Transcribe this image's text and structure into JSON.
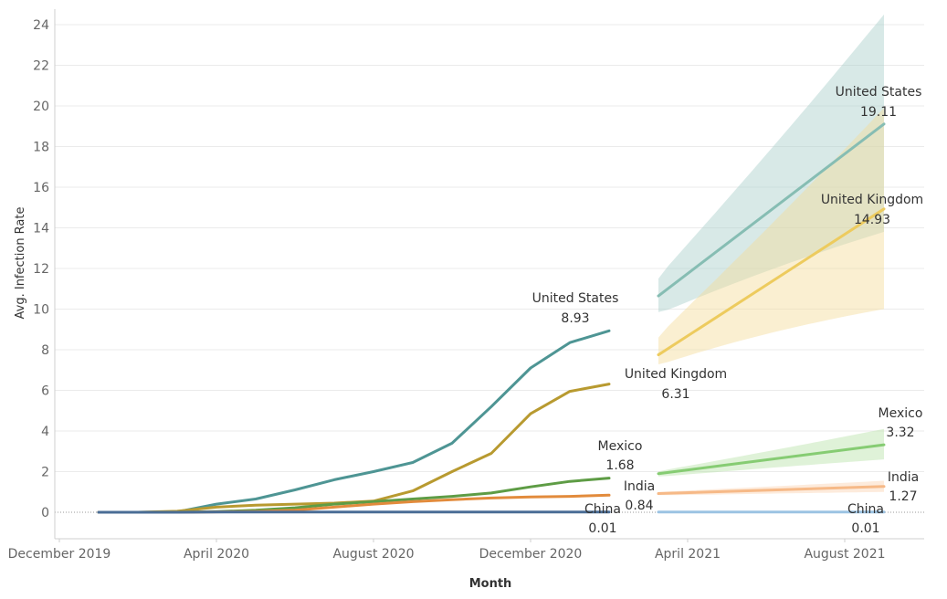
{
  "chart_data": {
    "type": "line",
    "xlabel": "Month",
    "ylabel": "Avg. Infection Rate",
    "x_ticks": [
      "December 2019",
      "April 2020",
      "August 2020",
      "December 2020",
      "April 2021",
      "August 2021"
    ],
    "y_ticks": [
      0,
      2,
      4,
      6,
      8,
      10,
      12,
      14,
      16,
      18,
      20,
      22,
      24
    ],
    "ylim": [
      -2.5,
      25
    ],
    "xlim": [
      "2019-11",
      "2021-10"
    ],
    "grid": true,
    "legend": "none",
    "x_months": [
      "2020-01",
      "2020-02",
      "2020-03",
      "2020-04",
      "2020-05",
      "2020-06",
      "2020-07",
      "2020-08",
      "2020-09",
      "2020-10",
      "2020-11",
      "2020-12",
      "2021-01",
      "2021-02",
      "2021-03"
    ],
    "series": [
      {
        "name": "United States",
        "color": "#4e9594",
        "values": [
          0,
          0,
          0.02,
          0.4,
          0.65,
          1.1,
          1.6,
          2.0,
          2.45,
          3.4,
          5.2,
          7.1,
          8.35,
          8.93,
          null
        ],
        "end_label": "United States",
        "end_value": "8.93"
      },
      {
        "name": "United Kingdom",
        "color": "#b89a30",
        "values": [
          0,
          0,
          0.05,
          0.25,
          0.35,
          0.4,
          0.45,
          0.55,
          1.05,
          2.0,
          2.9,
          4.85,
          5.95,
          6.31,
          null
        ],
        "end_label": "United Kingdom",
        "end_value": "6.31"
      },
      {
        "name": "Mexico",
        "color": "#5e9c45",
        "values": [
          0,
          0,
          0,
          0.03,
          0.1,
          0.22,
          0.4,
          0.52,
          0.65,
          0.78,
          0.95,
          1.25,
          1.52,
          1.68,
          null
        ],
        "end_label": "Mexico",
        "end_value": "1.68"
      },
      {
        "name": "India",
        "color": "#e28b3c",
        "values": [
          0,
          0,
          0,
          0.02,
          0.04,
          0.1,
          0.25,
          0.4,
          0.52,
          0.62,
          0.7,
          0.75,
          0.78,
          0.84,
          null
        ],
        "end_label": "India",
        "end_value": "0.84"
      },
      {
        "name": "China",
        "color": "#4a6d96",
        "values": [
          0,
          0,
          0,
          0.01,
          0.01,
          0.01,
          0.01,
          0.01,
          0.01,
          0.01,
          0.01,
          0.01,
          0.01,
          0.01,
          null
        ],
        "end_label": "China",
        "end_value": "0.01"
      }
    ],
    "forecast": {
      "x_range": [
        "2021-03",
        "2021-10"
      ],
      "series": [
        {
          "name": "United States",
          "color": "#86bdb3",
          "band_color": "#a9cfc9",
          "start": 10.65,
          "end": 19.11,
          "lower": [
            9.2,
            13.8
          ],
          "upper": [
            12.2,
            24.5
          ],
          "end_label": "United States",
          "end_value": "19.11"
        },
        {
          "name": "United Kingdom",
          "color": "#edcb5e",
          "band_color": "#f4dc98",
          "start": 7.75,
          "end": 14.93,
          "lower": [
            6.9,
            10.0
          ],
          "upper": [
            9.3,
            19.9
          ],
          "end_label": "United Kingdom",
          "end_value": "14.93"
        },
        {
          "name": "Mexico",
          "color": "#86cc73",
          "band_color": "#b9e3a9",
          "start": 1.9,
          "end": 3.32,
          "lower": [
            1.65,
            2.6
          ],
          "upper": [
            2.1,
            4.1
          ],
          "end_label": "Mexico",
          "end_value": "3.32"
        },
        {
          "name": "India",
          "color": "#f6b987",
          "band_color": "#fbd3b2",
          "start": 0.92,
          "end": 1.27,
          "lower": [
            0.78,
            1.0
          ],
          "upper": [
            1.05,
            1.55
          ],
          "end_label": "India",
          "end_value": "1.27"
        },
        {
          "name": "China",
          "color": "#9cc3e3",
          "band_color": "#c9def0",
          "start": 0.01,
          "end": 0.01,
          "lower": [
            0.0,
            0.0
          ],
          "upper": [
            0.03,
            0.03
          ],
          "end_label": "China",
          "end_value": "0.01"
        }
      ]
    }
  }
}
